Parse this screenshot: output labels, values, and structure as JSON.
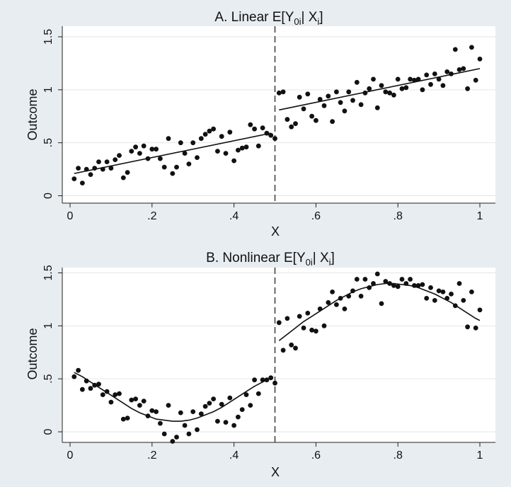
{
  "chart_data": [
    {
      "type": "scatter",
      "title": "A. Linear E[Y",
      "title_sub": "0i",
      "title_mid": "| X",
      "title_sub2": "i",
      "title_end": "]",
      "xlabel": "X",
      "ylabel": "Outcome",
      "xlim": [
        0,
        1
      ],
      "ylim": [
        -0.07,
        1.6
      ],
      "xticks": [
        0,
        0.2,
        0.4,
        0.6,
        0.8,
        1
      ],
      "xtick_labels": [
        "0",
        ".2",
        ".4",
        ".6",
        ".8",
        "1"
      ],
      "yticks": [
        0,
        0.5,
        1,
        1.5
      ],
      "ytick_labels": [
        "0",
        ".5",
        "1",
        "1.5"
      ],
      "grid": true,
      "cutoff": 0.5,
      "series": [
        {
          "x": [
            0.01,
            0.02,
            0.03,
            0.04,
            0.05,
            0.06,
            0.07,
            0.08,
            0.09,
            0.1,
            0.11,
            0.12,
            0.13,
            0.14,
            0.15,
            0.16,
            0.17,
            0.18,
            0.19,
            0.2,
            0.21,
            0.22,
            0.23,
            0.24,
            0.25,
            0.26,
            0.27,
            0.28,
            0.29,
            0.3,
            0.31,
            0.32,
            0.33,
            0.34,
            0.35,
            0.36,
            0.37,
            0.38,
            0.39,
            0.4,
            0.41,
            0.42,
            0.43,
            0.44,
            0.45,
            0.46,
            0.47,
            0.48,
            0.49,
            0.5,
            0.51,
            0.52,
            0.53,
            0.54,
            0.55,
            0.56,
            0.57,
            0.58,
            0.59,
            0.6,
            0.61,
            0.62,
            0.63,
            0.64,
            0.65,
            0.66,
            0.67,
            0.68,
            0.69,
            0.7,
            0.71,
            0.72,
            0.73,
            0.74,
            0.75,
            0.76,
            0.77,
            0.78,
            0.79,
            0.8,
            0.81,
            0.82,
            0.83,
            0.84,
            0.85,
            0.86,
            0.87,
            0.88,
            0.89,
            0.9,
            0.91,
            0.92,
            0.93,
            0.94,
            0.95,
            0.96,
            0.97,
            0.98,
            0.99,
            1.0
          ],
          "y": [
            0.16,
            0.26,
            0.12,
            0.25,
            0.2,
            0.26,
            0.32,
            0.25,
            0.32,
            0.26,
            0.34,
            0.38,
            0.17,
            0.22,
            0.42,
            0.46,
            0.4,
            0.47,
            0.35,
            0.44,
            0.44,
            0.35,
            0.27,
            0.54,
            0.21,
            0.27,
            0.5,
            0.4,
            0.3,
            0.5,
            0.36,
            0.54,
            0.58,
            0.61,
            0.63,
            0.42,
            0.56,
            0.4,
            0.6,
            0.33,
            0.43,
            0.45,
            0.46,
            0.67,
            0.63,
            0.47,
            0.64,
            0.59,
            0.57,
            0.54,
            0.97,
            0.98,
            0.72,
            0.65,
            0.68,
            0.93,
            0.82,
            0.96,
            0.75,
            0.71,
            0.91,
            0.85,
            0.94,
            0.7,
            0.98,
            0.88,
            0.8,
            0.98,
            0.9,
            1.07,
            0.86,
            0.97,
            1.01,
            1.1,
            0.83,
            1.04,
            0.98,
            0.97,
            0.95,
            1.1,
            1.01,
            1.02,
            1.1,
            1.09,
            1.1,
            1.0,
            1.14,
            1.05,
            1.15,
            1.1,
            1.04,
            1.17,
            1.15,
            1.38,
            1.19,
            1.2,
            1.01,
            1.4,
            1.09,
            1.29
          ]
        }
      ],
      "fits": [
        {
          "x": [
            0.01,
            0.49
          ],
          "y": [
            0.21,
            0.59
          ]
        },
        {
          "x": [
            0.51,
            1.0
          ],
          "y": [
            0.81,
            1.2
          ]
        }
      ]
    },
    {
      "type": "scatter",
      "title": "B. Nonlinear E[Y",
      "title_sub": "0i",
      "title_mid": "| X",
      "title_sub2": "i",
      "title_end": "]",
      "xlabel": "X",
      "ylabel": "Outcome",
      "xlim": [
        0,
        1
      ],
      "ylim": [
        -0.1,
        1.55
      ],
      "xticks": [
        0,
        0.2,
        0.4,
        0.6,
        0.8,
        1
      ],
      "xtick_labels": [
        "0",
        ".2",
        ".4",
        ".6",
        ".8",
        "1"
      ],
      "yticks": [
        0,
        0.5,
        1,
        1.5
      ],
      "ytick_labels": [
        "0",
        ".5",
        "1",
        "1.5"
      ],
      "grid": true,
      "cutoff": 0.5,
      "series": [
        {
          "x": [
            0.01,
            0.02,
            0.03,
            0.04,
            0.05,
            0.06,
            0.07,
            0.08,
            0.09,
            0.1,
            0.11,
            0.12,
            0.13,
            0.14,
            0.15,
            0.16,
            0.17,
            0.18,
            0.19,
            0.2,
            0.21,
            0.22,
            0.23,
            0.24,
            0.25,
            0.26,
            0.27,
            0.28,
            0.29,
            0.3,
            0.31,
            0.32,
            0.33,
            0.34,
            0.35,
            0.36,
            0.37,
            0.38,
            0.39,
            0.4,
            0.41,
            0.42,
            0.43,
            0.44,
            0.45,
            0.46,
            0.47,
            0.48,
            0.49,
            0.5,
            0.51,
            0.52,
            0.53,
            0.54,
            0.55,
            0.56,
            0.57,
            0.58,
            0.59,
            0.6,
            0.61,
            0.62,
            0.63,
            0.64,
            0.65,
            0.66,
            0.67,
            0.68,
            0.69,
            0.7,
            0.71,
            0.72,
            0.73,
            0.74,
            0.75,
            0.76,
            0.77,
            0.78,
            0.79,
            0.8,
            0.81,
            0.82,
            0.83,
            0.84,
            0.85,
            0.86,
            0.87,
            0.88,
            0.89,
            0.9,
            0.91,
            0.92,
            0.93,
            0.94,
            0.95,
            0.96,
            0.97,
            0.98,
            0.99,
            1.0
          ],
          "y": [
            0.52,
            0.58,
            0.4,
            0.48,
            0.41,
            0.44,
            0.45,
            0.35,
            0.38,
            0.28,
            0.35,
            0.36,
            0.12,
            0.13,
            0.3,
            0.31,
            0.25,
            0.29,
            0.15,
            0.2,
            0.19,
            0.08,
            -0.02,
            0.25,
            -0.09,
            -0.05,
            0.18,
            0.06,
            -0.02,
            0.19,
            0.02,
            0.17,
            0.24,
            0.27,
            0.31,
            0.1,
            0.26,
            0.09,
            0.32,
            0.06,
            0.14,
            0.21,
            0.35,
            0.25,
            0.49,
            0.36,
            0.49,
            0.49,
            0.51,
            0.46,
            1.03,
            0.77,
            1.07,
            0.82,
            0.79,
            1.09,
            0.98,
            1.12,
            0.96,
            0.95,
            1.16,
            1.0,
            1.22,
            1.32,
            1.2,
            1.26,
            1.16,
            1.28,
            1.33,
            1.44,
            1.28,
            1.44,
            1.36,
            1.4,
            1.49,
            1.21,
            1.42,
            1.4,
            1.38,
            1.37,
            1.44,
            1.4,
            1.44,
            1.38,
            1.38,
            1.39,
            1.26,
            1.36,
            1.24,
            1.33,
            1.32,
            1.26,
            1.3,
            1.19,
            1.4,
            1.24,
            0.99,
            1.32,
            0.98,
            1.15
          ]
        }
      ],
      "fits": [
        {
          "x": [
            0.01,
            0.03,
            0.05,
            0.07,
            0.09,
            0.11,
            0.13,
            0.15,
            0.17,
            0.19,
            0.21,
            0.23,
            0.25,
            0.27,
            0.29,
            0.31,
            0.33,
            0.35,
            0.37,
            0.39,
            0.41,
            0.43,
            0.45,
            0.47,
            0.49
          ],
          "y": [
            0.56,
            0.52,
            0.47,
            0.42,
            0.37,
            0.32,
            0.27,
            0.22,
            0.18,
            0.15,
            0.12,
            0.11,
            0.1,
            0.1,
            0.11,
            0.13,
            0.16,
            0.19,
            0.23,
            0.28,
            0.33,
            0.38,
            0.43,
            0.47,
            0.51
          ]
        },
        {
          "x": [
            0.51,
            0.53,
            0.55,
            0.57,
            0.59,
            0.61,
            0.63,
            0.65,
            0.67,
            0.69,
            0.71,
            0.73,
            0.75,
            0.77,
            0.79,
            0.81,
            0.83,
            0.85,
            0.87,
            0.89,
            0.91,
            0.93,
            0.95,
            0.97,
            0.99,
            1.0
          ],
          "y": [
            0.86,
            0.92,
            0.98,
            1.04,
            1.09,
            1.14,
            1.19,
            1.24,
            1.28,
            1.32,
            1.35,
            1.37,
            1.39,
            1.4,
            1.4,
            1.39,
            1.38,
            1.36,
            1.33,
            1.3,
            1.26,
            1.22,
            1.17,
            1.12,
            1.07,
            1.05
          ]
        }
      ]
    }
  ]
}
